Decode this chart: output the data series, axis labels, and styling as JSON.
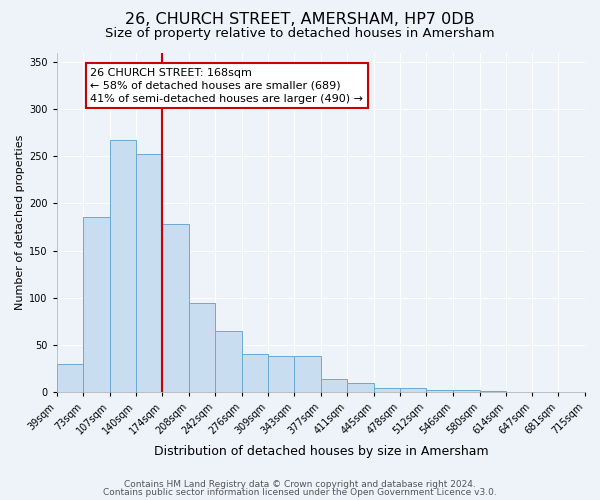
{
  "title": "26, CHURCH STREET, AMERSHAM, HP7 0DB",
  "subtitle": "Size of property relative to detached houses in Amersham",
  "xlabel": "Distribution of detached houses by size in Amersham",
  "ylabel": "Number of detached properties",
  "bar_color": "#c9ddf0",
  "bar_edge_color": "#6aaad4",
  "bar_heights": [
    30,
    186,
    267,
    252,
    178,
    95,
    65,
    40,
    38,
    38,
    14,
    10,
    5,
    4,
    2,
    2,
    1,
    0,
    0,
    0,
    1
  ],
  "bin_labels": [
    "39sqm",
    "73sqm",
    "107sqm",
    "140sqm",
    "174sqm",
    "208sqm",
    "242sqm",
    "276sqm",
    "309sqm",
    "343sqm",
    "377sqm",
    "411sqm",
    "445sqm",
    "478sqm",
    "512sqm",
    "546sqm",
    "580sqm",
    "614sqm",
    "647sqm",
    "681sqm",
    "715sqm"
  ],
  "bin_edges": [
    39,
    73,
    107,
    140,
    174,
    208,
    242,
    276,
    309,
    343,
    377,
    411,
    445,
    478,
    512,
    546,
    580,
    614,
    647,
    681,
    715
  ],
  "property_line_x": 174,
  "property_line_label": "26 CHURCH STREET: 168sqm",
  "annotation_line1": "← 58% of detached houses are smaller (689)",
  "annotation_line2": "41% of semi-detached houses are larger (490) →",
  "annotation_box_color": "#ffffff",
  "annotation_box_edge_color": "#cc0000",
  "ylim": [
    0,
    360
  ],
  "yticks": [
    0,
    50,
    100,
    150,
    200,
    250,
    300,
    350
  ],
  "footer1": "Contains HM Land Registry data © Crown copyright and database right 2024.",
  "footer2": "Contains public sector information licensed under the Open Government Licence v3.0.",
  "background_color": "#eef2f9",
  "grid_color": "#ffffff",
  "title_fontsize": 11.5,
  "subtitle_fontsize": 9.5,
  "xlabel_fontsize": 9,
  "ylabel_fontsize": 8,
  "tick_fontsize": 7,
  "footer_fontsize": 6.5
}
